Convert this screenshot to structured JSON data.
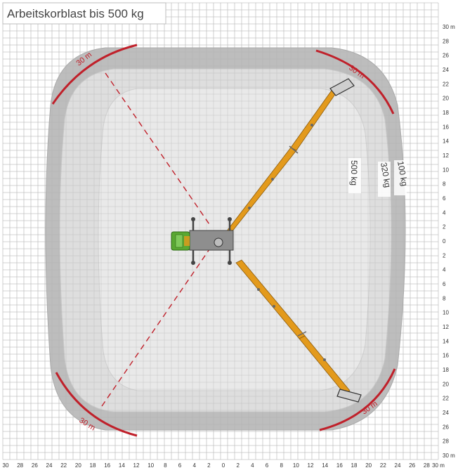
{
  "title": "Arbeitskorblast bis 500 kg",
  "axis": {
    "unit": "m",
    "x_ticks": [
      "30",
      "28",
      "26",
      "24",
      "22",
      "20",
      "18",
      "16",
      "14",
      "12",
      "10",
      "8",
      "6",
      "4",
      "2",
      "0",
      "2",
      "4",
      "6",
      "8",
      "10",
      "12",
      "14",
      "16",
      "18",
      "20",
      "22",
      "24",
      "26",
      "28",
      "30 m"
    ],
    "y_ticks": [
      "30 m",
      "28",
      "26",
      "24",
      "22",
      "20",
      "18",
      "16",
      "14",
      "12",
      "10",
      "8",
      "6",
      "4",
      "2",
      "0",
      "2",
      "4",
      "6",
      "8",
      "10",
      "12",
      "14",
      "16",
      "18",
      "20",
      "22",
      "24",
      "26",
      "28",
      "30 m"
    ]
  },
  "zones": [
    {
      "label": "500 kg"
    },
    {
      "label": "320 kg"
    },
    {
      "label": "100 kg"
    }
  ],
  "reach_markers": [
    "30 m",
    "30 m",
    "30 m",
    "30 m"
  ],
  "colors": {
    "grid": "#c9c9c9",
    "zone_outer": "#bdbdbd",
    "zone_mid": "#dedede",
    "zone_inner": "#e9e9e9",
    "reach_arc": "#c0202a",
    "boom": "#e39a1c",
    "truck_cab": "#5aa832"
  }
}
